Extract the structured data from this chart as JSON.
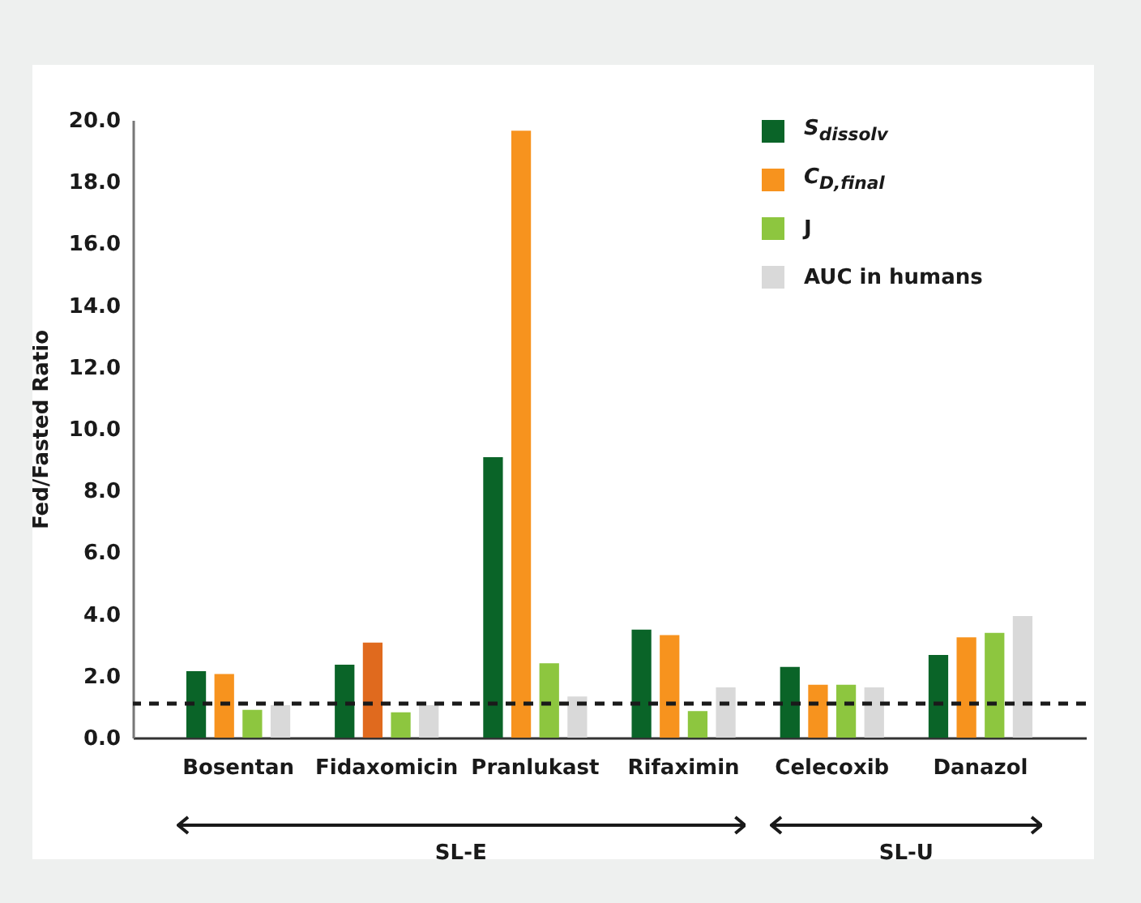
{
  "chart_data": {
    "type": "bar",
    "ylabel": "Fed/Fasted Ratio",
    "categories": [
      "Bosentan",
      "Fidaxomicin",
      "Pranlukast",
      "Rifaximin",
      "Celecoxib",
      "Danazol"
    ],
    "series": [
      {
        "name": "S$_{dissolv}$",
        "color": "#0a6428",
        "values": [
          2.15,
          2.36,
          9.08,
          3.5,
          2.29,
          2.68
        ]
      },
      {
        "name": "C$_{D,final}$",
        "color": "#f7931e",
        "colors": [
          "#f7931e",
          "#e06a1e",
          "#f7931e",
          "#f7931e",
          "#f7931e",
          "#f7931e"
        ],
        "values": [
          2.06,
          3.08,
          19.65,
          3.32,
          1.71,
          3.25
        ]
      },
      {
        "name": "J",
        "color": "#8dc63f",
        "values": [
          0.9,
          0.82,
          2.41,
          0.86,
          1.71,
          3.39
        ]
      },
      {
        "name": "AUC in humans",
        "color": "#d9d9d9",
        "values": [
          1.05,
          1.05,
          1.33,
          1.63,
          1.63,
          3.94
        ]
      }
    ],
    "ylim": [
      0,
      20
    ],
    "yticks": [
      {
        "value": 0,
        "label": "0.0"
      },
      {
        "value": 2,
        "label": "2.0"
      },
      {
        "value": 4,
        "label": "4.0"
      },
      {
        "value": 6,
        "label": "6.0"
      },
      {
        "value": 8,
        "label": "8.0"
      },
      {
        "value": 10,
        "label": "10.0"
      },
      {
        "value": 12,
        "label": "12.0"
      },
      {
        "value": 14,
        "label": "14.0"
      },
      {
        "value": 16,
        "label": "16.0"
      },
      {
        "value": 18,
        "label": "18.0"
      },
      {
        "value": 20,
        "label": "20.0"
      }
    ],
    "ref_lines": [
      {
        "axis": "y",
        "value": 1.1,
        "color": "#1a1a1a",
        "line_style": "dashed"
      }
    ],
    "annotations": [
      "SL-E",
      "SL-U"
    ],
    "legend": "top right",
    "grid": false
  }
}
